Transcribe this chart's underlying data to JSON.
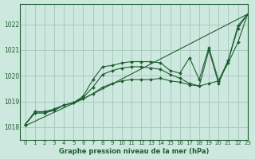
{
  "background_color": "#cde8de",
  "grid_color": "#a8ccbf",
  "line_color": "#1e5e30",
  "title": "Graphe pression niveau de la mer (hPa)",
  "xlim": [
    -0.5,
    23
  ],
  "ylim": [
    1017.5,
    1022.8
  ],
  "yticks": [
    1018,
    1019,
    1020,
    1021,
    1022
  ],
  "xticks": [
    0,
    1,
    2,
    3,
    4,
    5,
    6,
    7,
    8,
    9,
    10,
    11,
    12,
    13,
    14,
    15,
    16,
    17,
    18,
    19,
    20,
    21,
    22,
    23
  ],
  "series": [
    {
      "x": [
        0,
        1,
        2,
        3,
        4,
        5,
        6,
        7,
        8,
        9,
        10,
        11,
        12,
        13,
        14,
        15,
        16,
        17,
        18,
        19,
        20,
        21,
        22,
        23
      ],
      "y": [
        1018.1,
        1018.6,
        1018.6,
        1018.7,
        1018.85,
        1018.95,
        1019.1,
        1019.3,
        1019.55,
        1019.7,
        1019.8,
        1019.85,
        1019.85,
        1019.85,
        1019.9,
        1019.8,
        1019.75,
        1019.65,
        1019.6,
        1019.7,
        1019.8,
        1020.5,
        1021.3,
        1022.4
      ]
    },
    {
      "x": [
        0,
        1,
        2,
        3,
        4,
        5,
        6,
        7,
        8,
        9,
        10,
        11,
        12,
        13,
        14,
        15,
        16,
        17,
        18,
        19,
        20,
        21,
        22,
        23
      ],
      "y": [
        1018.1,
        1018.55,
        1018.55,
        1018.7,
        1018.85,
        1018.95,
        1019.15,
        1019.55,
        1020.05,
        1020.2,
        1020.3,
        1020.35,
        1020.35,
        1020.3,
        1020.25,
        1020.05,
        1019.9,
        1019.7,
        1019.6,
        1021.0,
        1019.7,
        1020.6,
        1021.85,
        1022.4
      ]
    },
    {
      "x": [
        0,
        1,
        2,
        3,
        4,
        5,
        6,
        7,
        8,
        9,
        10,
        11,
        12,
        13,
        14,
        15,
        16,
        17,
        18,
        19,
        20,
        21,
        22,
        23
      ],
      "y": [
        1018.1,
        1018.55,
        1018.55,
        1018.65,
        1018.85,
        1018.95,
        1019.2,
        1019.85,
        1020.35,
        1020.4,
        1020.5,
        1020.55,
        1020.55,
        1020.55,
        1020.5,
        1020.2,
        1020.1,
        1020.7,
        1019.85,
        1021.1,
        1019.8,
        1020.6,
        1021.95,
        1022.4
      ]
    },
    {
      "x": [
        0,
        6,
        23
      ],
      "y": [
        1018.05,
        1019.1,
        1022.4
      ]
    }
  ]
}
